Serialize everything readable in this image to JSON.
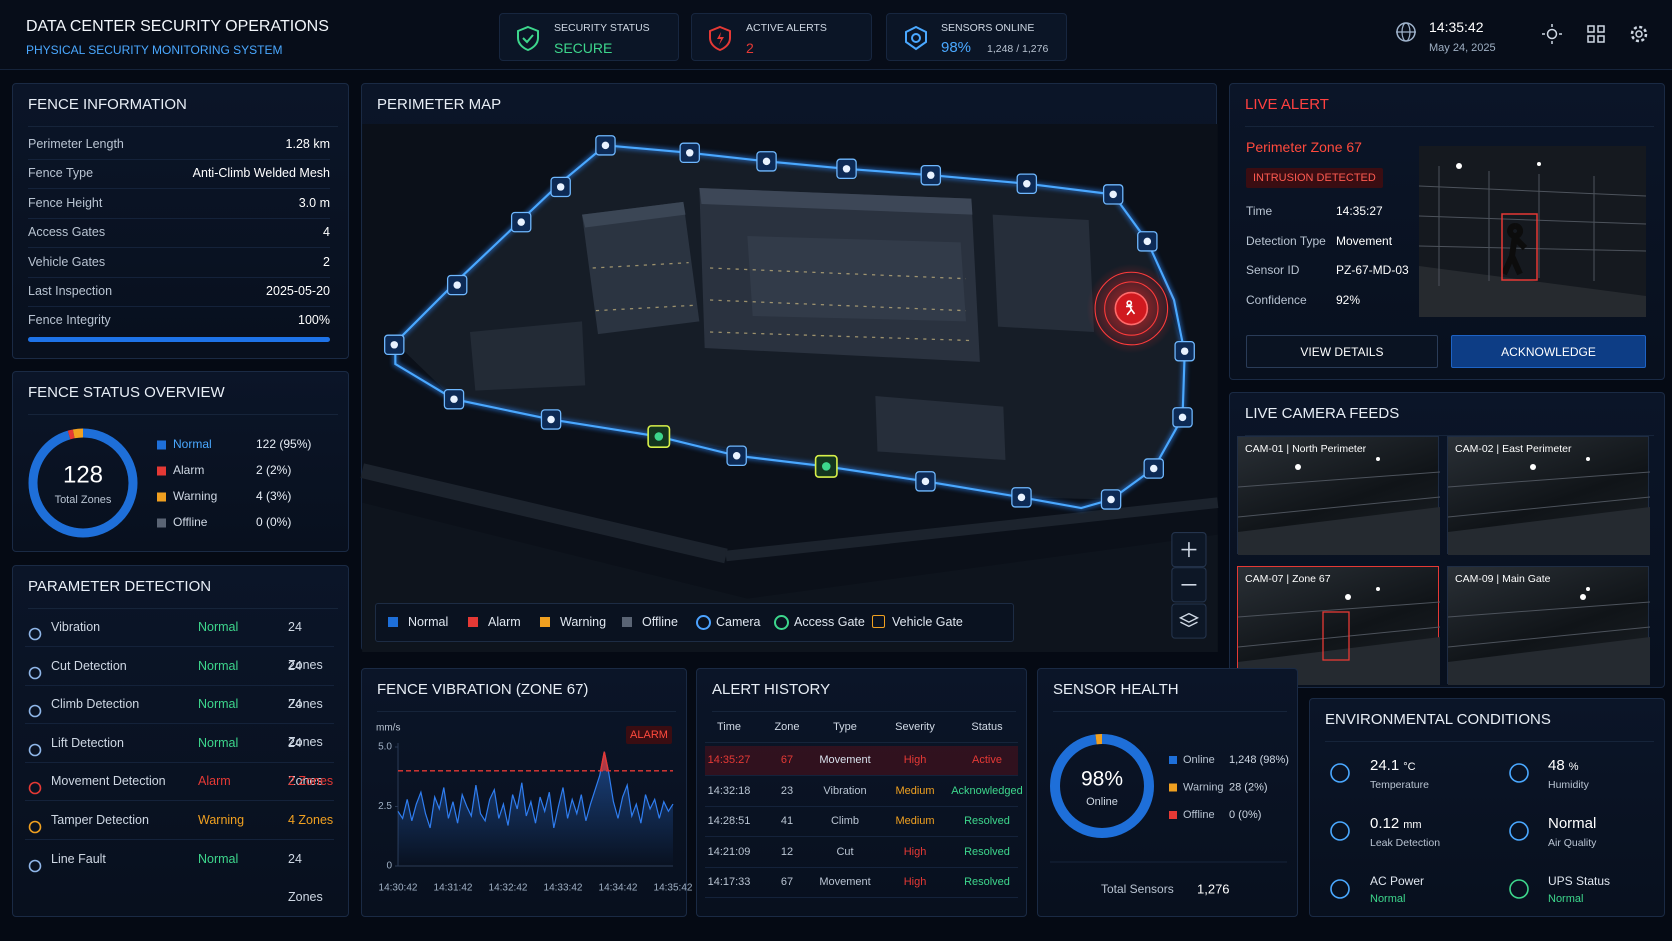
{
  "header": {
    "title": "DATA CENTER SECURITY OPERATIONS",
    "subtitle": "PHYSICAL SECURITY MONITORING SYSTEM",
    "status_cards": [
      {
        "label": "SECURITY STATUS",
        "value": "SECURE"
      },
      {
        "label": "ACTIVE ALERTS",
        "value": "2"
      },
      {
        "label": "SENSORS ONLINE",
        "value": "98%",
        "detail": "1,248 / 1,276"
      }
    ],
    "time": "14:35:42",
    "date": "May 24, 2025"
  },
  "fence_information": {
    "title": "FENCE INFORMATION",
    "rows": [
      [
        "Perimeter Length",
        "1.28 km"
      ],
      [
        "Fence Type",
        "Anti-Climb Welded Mesh"
      ],
      [
        "Fence Height",
        "3.0 m"
      ],
      [
        "Access Gates",
        "4"
      ],
      [
        "Vehicle Gates",
        "2"
      ],
      [
        "Last Inspection",
        "2025-05-20"
      ]
    ],
    "integrity": {
      "label": "Fence Integrity",
      "value": 100,
      "value_label": "100%"
    }
  },
  "fence_status": {
    "title": "FENCE STATUS OVERVIEW",
    "type": "donut",
    "total": 128,
    "total_label": "Total Zones",
    "categories": [
      "Normal",
      "Alarm",
      "Warning",
      "Offline"
    ],
    "values": [
      122,
      2,
      4,
      0
    ],
    "value_labels": [
      "122 (95%)",
      "2 (2%)",
      "4 (3%)",
      "0 (0%)"
    ],
    "colors": [
      "#1e6fd9",
      "#e53935",
      "#f0a020",
      "#5a6474"
    ]
  },
  "parameter_detection": {
    "title": "PARAMETER DETECTION",
    "rows": [
      {
        "name": "Vibration",
        "status": "Normal",
        "zones": "24 Zones",
        "color": "#3dd68c"
      },
      {
        "name": "Cut Detection",
        "status": "Normal",
        "zones": "24 Zones",
        "color": "#3dd68c"
      },
      {
        "name": "Climb Detection",
        "status": "Normal",
        "zones": "24 Zones",
        "color": "#3dd68c"
      },
      {
        "name": "Lift Detection",
        "status": "Normal",
        "zones": "24 Zones",
        "color": "#3dd68c"
      },
      {
        "name": "Movement Detection",
        "status": "Alarm",
        "zones": "2 Zones",
        "color": "#e53935"
      },
      {
        "name": "Tamper Detection",
        "status": "Warning",
        "zones": "4 Zones",
        "color": "#f0a020"
      },
      {
        "name": "Line Fault",
        "status": "Normal",
        "zones": "24 Zones",
        "color": "#3dd68c"
      }
    ]
  },
  "perimeter_map": {
    "title": "PERIMETER MAP",
    "legend": [
      {
        "name": "Normal",
        "color": "#1e6fd9"
      },
      {
        "name": "Alarm",
        "color": "#e53935"
      },
      {
        "name": "Warning",
        "color": "#f0a020"
      },
      {
        "name": "Offline",
        "color": "#5a6474"
      },
      {
        "name": "Camera",
        "color": "#4da3ff"
      },
      {
        "name": "Access Gate",
        "color": "#3dd68c"
      },
      {
        "name": "Vehicle Gate",
        "color": "#f0a020"
      }
    ]
  },
  "live_alert": {
    "title": "LIVE ALERT",
    "zone": "Perimeter Zone 67",
    "badge": "INTRUSION DETECTED",
    "rows": [
      [
        "Time",
        "14:35:27"
      ],
      [
        "Detection Type",
        "Movement"
      ],
      [
        "Sensor ID",
        "PZ-67-MD-03"
      ],
      [
        "Confidence",
        "92%"
      ]
    ],
    "buttons": [
      "VIEW DETAILS",
      "ACKNOWLEDGE"
    ]
  },
  "camera_feeds": {
    "title": "LIVE CAMERA FEEDS",
    "cameras": [
      "CAM-01 | North Perimeter",
      "CAM-02 | East Perimeter",
      "CAM-07 | Zone 67",
      "CAM-09 | Main Gate"
    ]
  },
  "fence_vibration": {
    "title": "FENCE VIBRATION (ZONE 67)",
    "type": "line",
    "y_label": "mm/s",
    "badge": "ALARM",
    "threshold": 4,
    "color": "#2f7df0",
    "alarm_color": "#e53935",
    "ylim": [
      0,
      5
    ],
    "yticks": [
      0,
      2.5,
      {
        "value": 5,
        "label": "5.0"
      }
    ],
    "categories": [
      "14:30:42",
      null,
      null,
      null,
      null,
      null,
      null,
      null,
      null,
      null,
      null,
      null,
      "14:31:42",
      null,
      null,
      null,
      null,
      null,
      null,
      null,
      null,
      null,
      null,
      null,
      "14:32:42",
      null,
      null,
      null,
      null,
      null,
      null,
      null,
      null,
      null,
      null,
      null,
      "14:33:42",
      null,
      null,
      null,
      null,
      null,
      null,
      null,
      null,
      null,
      null,
      null,
      "14:34:42",
      null,
      null,
      null,
      null,
      null,
      null,
      null,
      null,
      null,
      null,
      null,
      "14:35:42"
    ],
    "values": [
      2.3,
      2.0,
      2.8,
      1.9,
      2.6,
      3.1,
      2.2,
      1.6,
      2.9,
      2.4,
      3.3,
      2.0,
      2.7,
      1.8,
      3.0,
      2.5,
      2.1,
      3.4,
      2.2,
      1.9,
      2.8,
      3.2,
      2.0,
      2.6,
      1.7,
      3.0,
      2.4,
      3.5,
      2.1,
      2.7,
      1.8,
      2.9,
      2.3,
      3.1,
      1.6,
      2.5,
      3.3,
      2.0,
      2.8,
      2.2,
      3.0,
      1.9,
      2.6,
      3.2,
      3.8,
      4.8,
      3.9,
      2.7,
      2.0,
      2.9,
      3.4,
      2.1,
      2.6,
      1.8,
      3.0,
      2.4,
      2.8,
      2.0,
      2.7,
      2.3,
      2.6
    ]
  },
  "alert_history": {
    "title": "ALERT HISTORY",
    "columns": [
      "Time",
      "Zone",
      "Type",
      "Severity",
      "Status"
    ],
    "rows": [
      {
        "cells": [
          "14:35:27",
          "67",
          "Movement",
          "High",
          "Active"
        ],
        "colors": [
          "#e53935",
          "#e53935",
          "#d8e1ec",
          "#e53935",
          "#e53935"
        ]
      },
      {
        "cells": [
          "14:32:18",
          "23",
          "Vibration",
          "Medium",
          "Acknowledged"
        ],
        "colors": [
          "#b9c4d2",
          "#b9c4d2",
          "#b9c4d2",
          "#f0a020",
          "#3dd68c"
        ]
      },
      {
        "cells": [
          "14:28:51",
          "41",
          "Climb",
          "Medium",
          "Resolved"
        ],
        "colors": [
          "#b9c4d2",
          "#b9c4d2",
          "#b9c4d2",
          "#f0a020",
          "#3dd68c"
        ]
      },
      {
        "cells": [
          "14:21:09",
          "12",
          "Cut",
          "High",
          "Resolved"
        ],
        "colors": [
          "#b9c4d2",
          "#b9c4d2",
          "#b9c4d2",
          "#e53935",
          "#3dd68c"
        ]
      },
      {
        "cells": [
          "14:17:33",
          "67",
          "Movement",
          "High",
          "Resolved"
        ],
        "colors": [
          "#b9c4d2",
          "#b9c4d2",
          "#b9c4d2",
          "#e53935",
          "#3dd68c"
        ]
      }
    ]
  },
  "sensor_health": {
    "title": "SENSOR HEALTH",
    "type": "donut",
    "center_value": "98%",
    "center_label": "Online",
    "categories": [
      "Online",
      "Warning",
      "Offline"
    ],
    "values": [
      1248,
      28,
      0
    ],
    "value_labels": [
      "1,248 (98%)",
      "28 (2%)",
      "0 (0%)"
    ],
    "colors": [
      "#1e6fd9",
      "#f0a020",
      "#e53935"
    ],
    "total_label": "Total Sensors",
    "total": "1,276"
  },
  "environmental": {
    "title": "ENVIRONMENTAL CONDITIONS",
    "items": [
      {
        "value": "24.1",
        "unit": "°C",
        "label": "Temperature"
      },
      {
        "value": "48",
        "unit": "%",
        "label": "Humidity"
      },
      {
        "value": "0.12",
        "unit": "mm",
        "label": "Leak Detection"
      },
      {
        "value": "Normal",
        "label": "Air Quality"
      },
      {
        "label": "AC Power",
        "status": "Normal"
      },
      {
        "label": "UPS Status",
        "status": "Normal"
      }
    ]
  }
}
